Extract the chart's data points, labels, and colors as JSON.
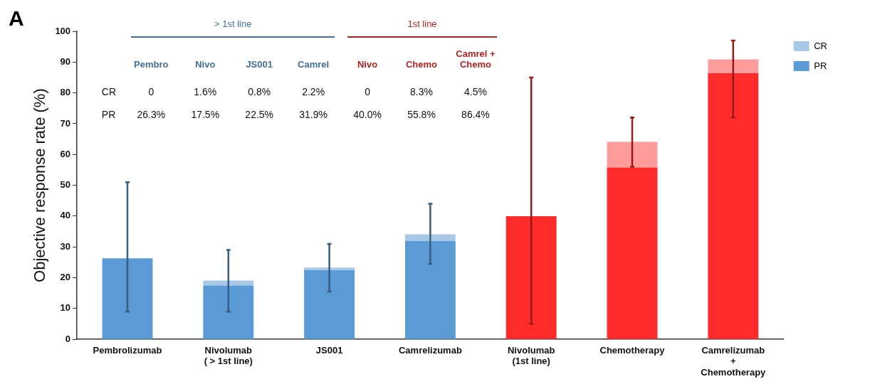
{
  "chart_data": {
    "type": "bar",
    "title": "A",
    "ylabel": "Objective response rate (%)",
    "categories": [
      "Pembrolizumab",
      "Nivolumab\n( > 1st line)",
      "JS001",
      "Camrelizumab",
      "Nivolumab\n(1st line)",
      "Chemotherapy",
      "Camrelizumab\n+\nChemotherapy"
    ],
    "stacked": true,
    "series": [
      {
        "name": "PR",
        "color": "#5b9bd5",
        "colors": [
          "#5b9bd5",
          "#5b9bd5",
          "#5b9bd5",
          "#5b9bd5",
          "#ff2b2b",
          "#ff2b2b",
          "#ff2b2b"
        ],
        "values": [
          26.3,
          17.5,
          22.5,
          31.9,
          40.0,
          55.8,
          86.4
        ]
      },
      {
        "name": "CR",
        "color": "#a9c8e8",
        "colors": [
          "#a9c8e8",
          "#a9c8e8",
          "#a9c8e8",
          "#a9c8e8",
          "#ff9c9c",
          "#ff9c9c",
          "#ff9c9c"
        ],
        "values": [
          0,
          1.6,
          0.8,
          2.2,
          0,
          8.3,
          4.5
        ],
        "errors": [
          [
            9,
            51
          ],
          [
            9,
            29
          ],
          [
            15.5,
            31
          ],
          [
            24.5,
            44
          ],
          [
            5,
            85
          ],
          [
            56,
            72
          ],
          [
            72,
            97
          ]
        ]
      }
    ],
    "annotations": [
      "> 1st line",
      "1st line",
      "Pembro",
      "Nivo",
      "JS001",
      "Camrel",
      "Nivo",
      "Chemo",
      "Camrel +\nChemo",
      "CR",
      "0",
      "1.6%",
      "0.8%",
      "2.2%",
      "0",
      "8.3%",
      "4.5%",
      "PR",
      "26.3%",
      "17.5%",
      "22.5%",
      "31.9%",
      "40.0%",
      "55.8%",
      "86.4%"
    ],
    "ylim": [
      0,
      100
    ],
    "yticks": [
      0,
      10,
      20,
      30,
      40,
      50,
      60,
      70,
      80,
      90,
      100
    ],
    "grid": false,
    "legend": "right"
  }
}
